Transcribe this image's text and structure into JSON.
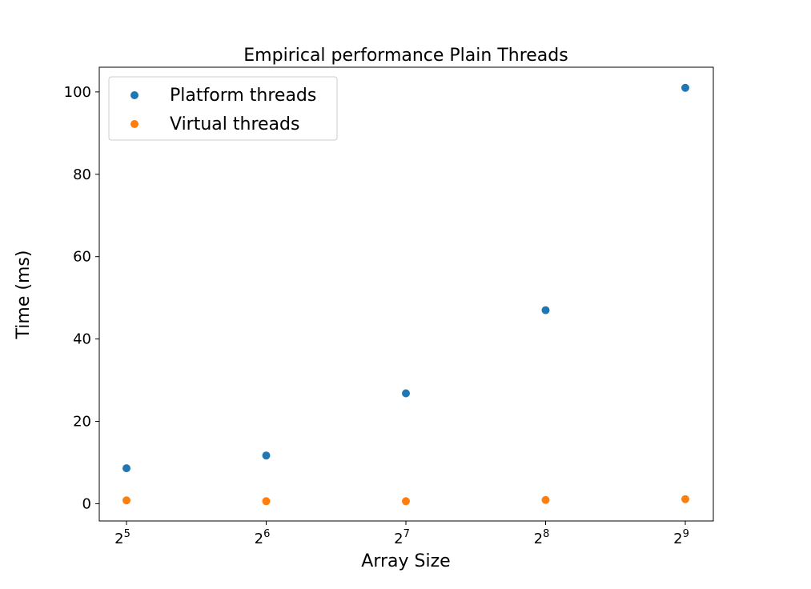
{
  "chart_data": {
    "type": "scatter",
    "title": "Empirical performance Plain Threads",
    "xlabel": "Array Size",
    "ylabel": "Time (ms)",
    "x_scale": "log2",
    "x": [
      32,
      64,
      128,
      256,
      512
    ],
    "x_tick_labels": [
      {
        "base": "2",
        "exp": "5"
      },
      {
        "base": "2",
        "exp": "6"
      },
      {
        "base": "2",
        "exp": "7"
      },
      {
        "base": "2",
        "exp": "8"
      },
      {
        "base": "2",
        "exp": "9"
      }
    ],
    "y_ticks": [
      0,
      20,
      40,
      60,
      80,
      100
    ],
    "ylim": [
      -4.2,
      106
    ],
    "grid": false,
    "legend_position": "top-left",
    "series": [
      {
        "name": "Platform threads",
        "color": "#1f77b4",
        "values": [
          8.6,
          11.7,
          26.8,
          47.0,
          101.0
        ]
      },
      {
        "name": "Virtual threads",
        "color": "#ff7f0e",
        "values": [
          0.8,
          0.6,
          0.6,
          0.9,
          1.1
        ]
      }
    ]
  }
}
